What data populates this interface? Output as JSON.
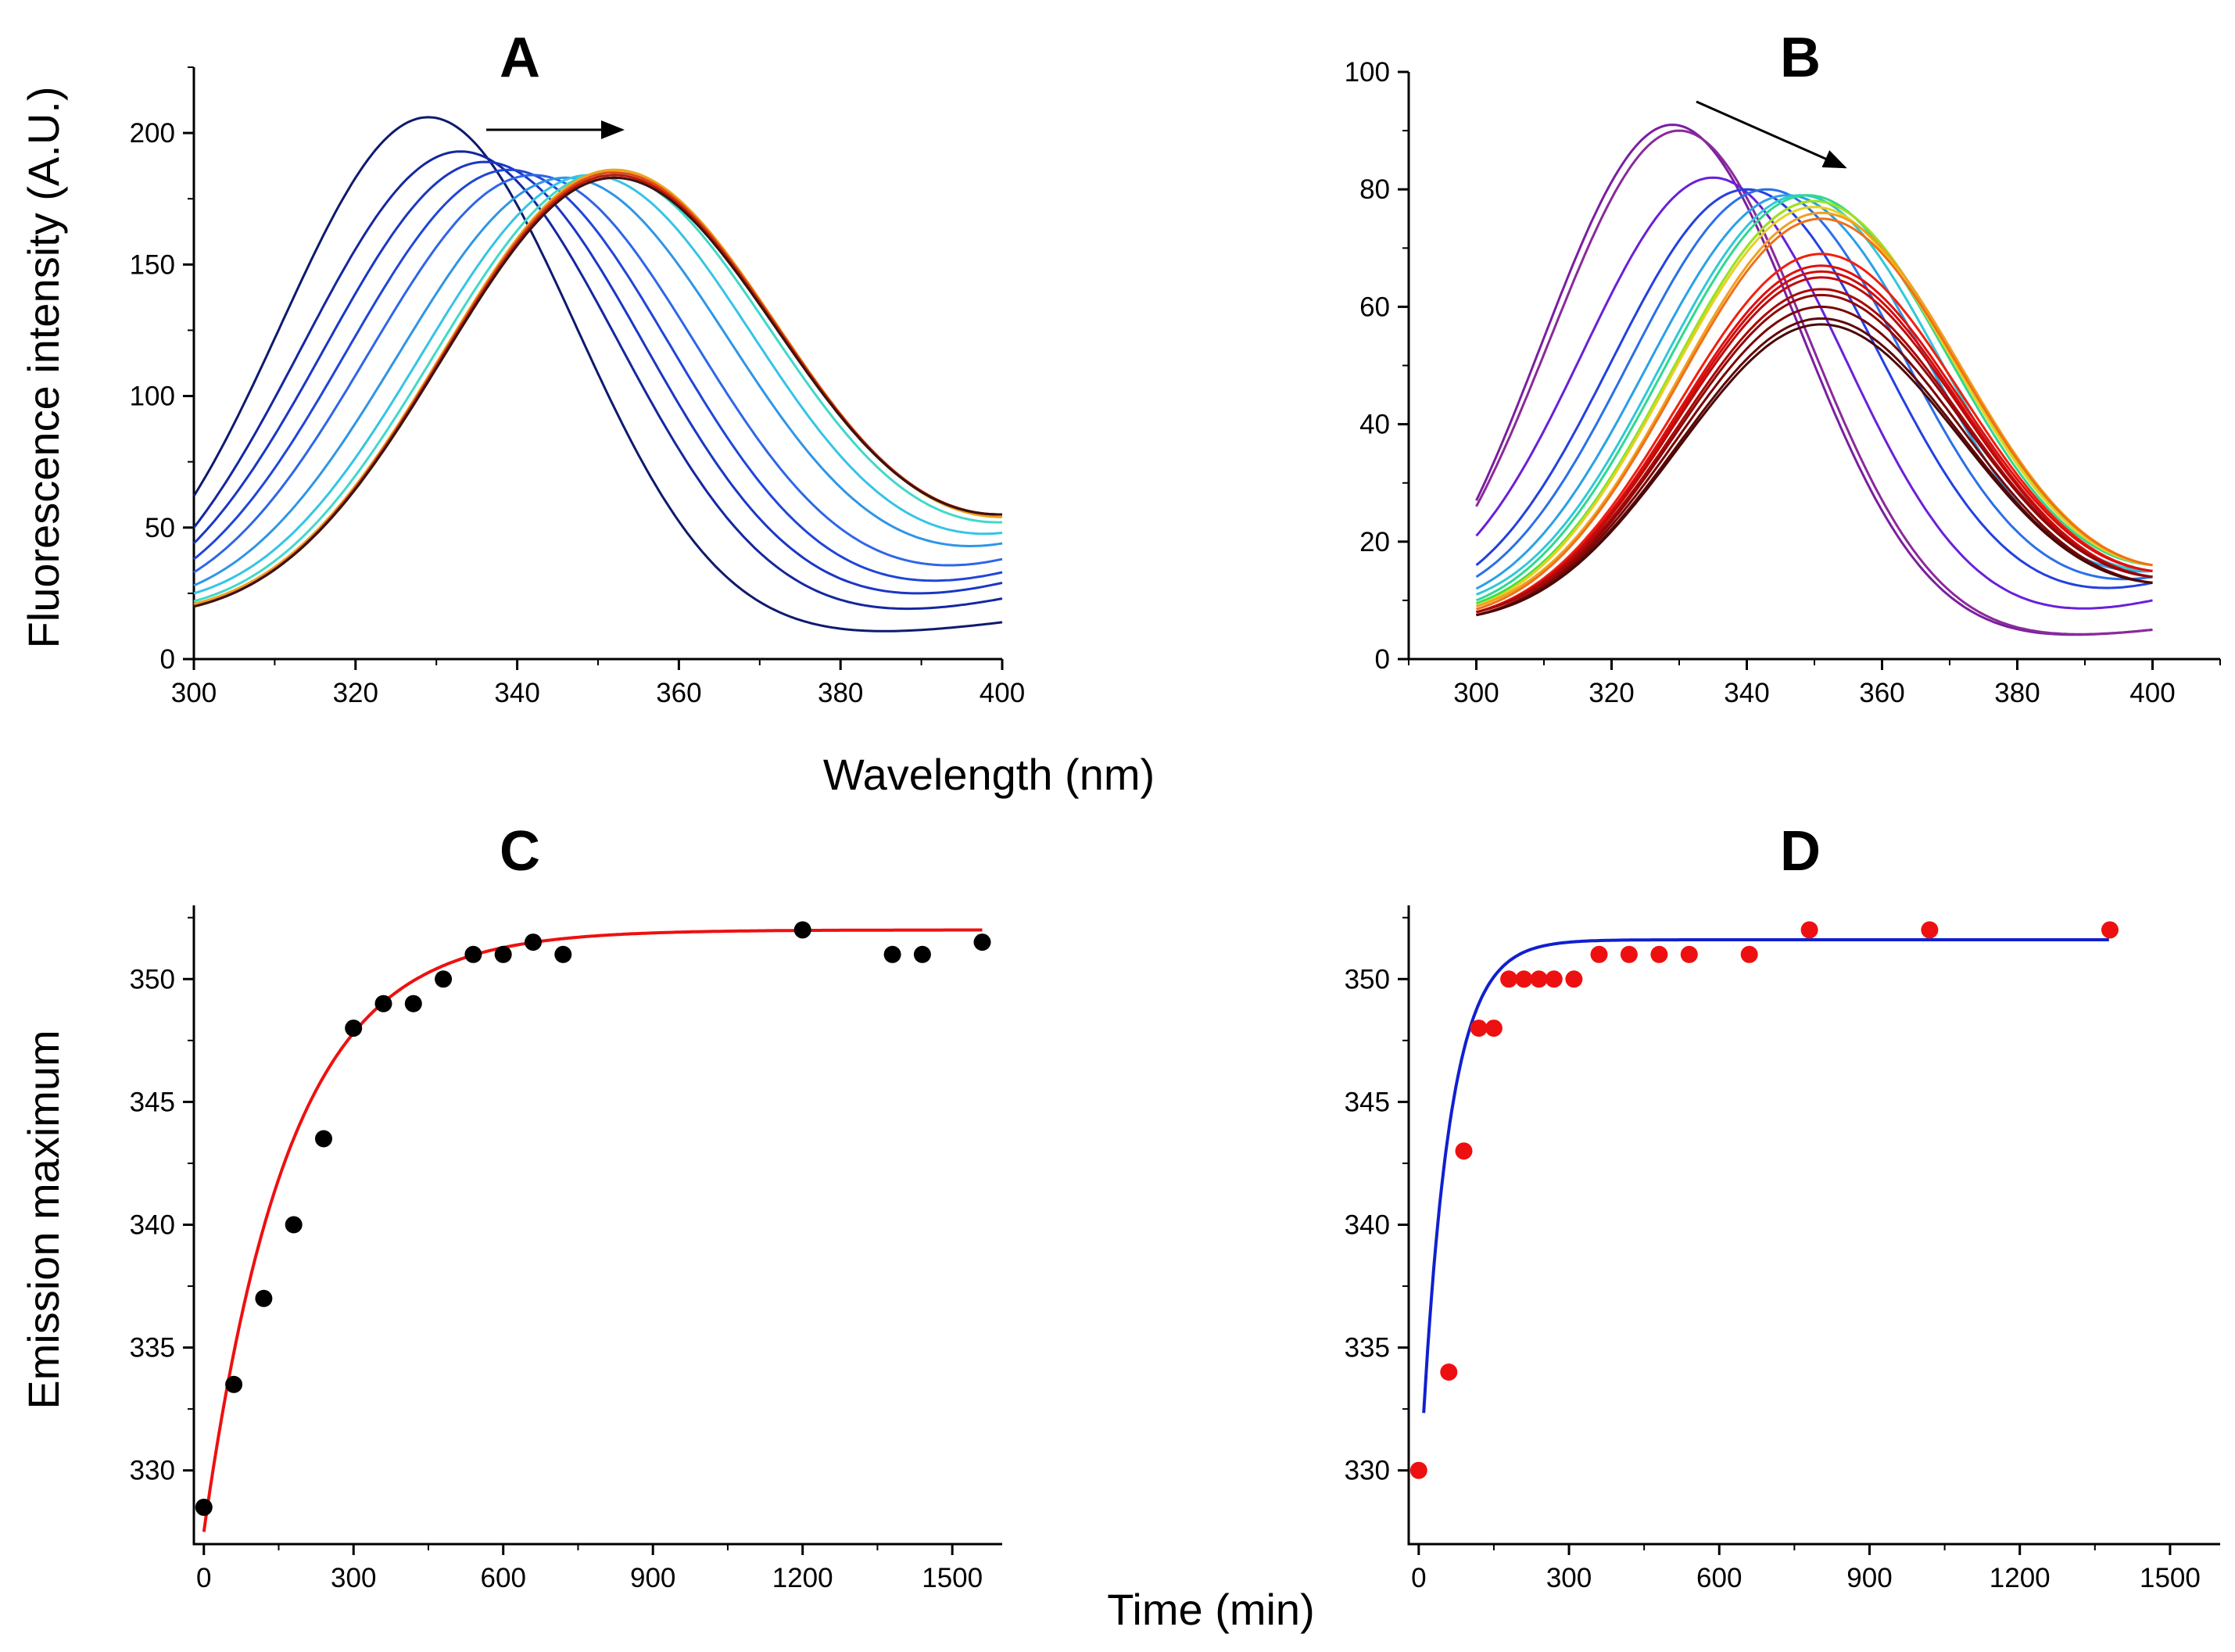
{
  "shared_labels": {
    "top_xlabel": "Wavelength (nm)",
    "top_ylabel": "Fluorescence intensity (A.U.)",
    "bottom_xlabel": "Time (min)",
    "bottom_ylabel": "Emission maximum"
  },
  "chart_data": [
    {
      "id": "A",
      "type": "line",
      "title": "A",
      "xlabel": "Wavelength (nm)",
      "ylabel": "Fluorescence intensity (A.U.)",
      "xlim": [
        300,
        400
      ],
      "ylim": [
        0,
        225
      ],
      "xticks": [
        300,
        320,
        340,
        360,
        380,
        400
      ],
      "yticks": [
        0,
        50,
        100,
        150,
        200
      ],
      "annotation": "arrow pointing right (red shift)",
      "series": [
        {
          "name": "A-1",
          "color": "#0d1a6e",
          "peak_x": 329,
          "peak_y": 206,
          "width": 26,
          "start_y": 62,
          "end_y": 14
        },
        {
          "name": "A-2",
          "color": "#1427a0",
          "peak_x": 333,
          "peak_y": 193,
          "width": 28,
          "start_y": 50,
          "end_y": 23
        },
        {
          "name": "A-3",
          "color": "#1a37c4",
          "peak_x": 336,
          "peak_y": 189,
          "width": 28.5,
          "start_y": 44,
          "end_y": 29
        },
        {
          "name": "A-4",
          "color": "#2046d8",
          "peak_x": 339,
          "peak_y": 186,
          "width": 29,
          "start_y": 38,
          "end_y": 33
        },
        {
          "name": "A-5",
          "color": "#2e66e8",
          "peak_x": 342,
          "peak_y": 184,
          "width": 29.5,
          "start_y": 33,
          "end_y": 38
        },
        {
          "name": "A-6",
          "color": "#2f95e6",
          "peak_x": 346,
          "peak_y": 183,
          "width": 30,
          "start_y": 28,
          "end_y": 44
        },
        {
          "name": "A-7",
          "color": "#35c4e6",
          "peak_x": 349,
          "peak_y": 184,
          "width": 30,
          "start_y": 25,
          "end_y": 48
        },
        {
          "name": "A-8",
          "color": "#40d9c9",
          "peak_x": 351,
          "peak_y": 185,
          "width": 30.5,
          "start_y": 22,
          "end_y": 52
        },
        {
          "name": "A-9",
          "color": "#a0d640",
          "peak_x": 352,
          "peak_y": 186,
          "width": 30.5,
          "start_y": 21,
          "end_y": 54
        },
        {
          "name": "A-10",
          "color": "#f0a020",
          "peak_x": 352,
          "peak_y": 186,
          "width": 30.5,
          "start_y": 21,
          "end_y": 54
        },
        {
          "name": "A-11",
          "color": "#e04a10",
          "peak_x": 352,
          "peak_y": 185,
          "width": 30.5,
          "start_y": 20,
          "end_y": 55
        },
        {
          "name": "A-12",
          "color": "#c0180a",
          "peak_x": 352,
          "peak_y": 184,
          "width": 30.5,
          "start_y": 20,
          "end_y": 55
        },
        {
          "name": "A-13",
          "color": "#8a0a0a",
          "peak_x": 352,
          "peak_y": 183,
          "width": 30.5,
          "start_y": 20,
          "end_y": 55
        },
        {
          "name": "A-14",
          "color": "#3a1410",
          "peak_x": 352,
          "peak_y": 183,
          "width": 30.5,
          "start_y": 20,
          "end_y": 55
        }
      ]
    },
    {
      "id": "B",
      "type": "line",
      "title": "B",
      "xlabel": "Wavelength (nm)",
      "ylabel": "",
      "xlim": [
        290,
        410
      ],
      "ylim": [
        0,
        100
      ],
      "xticks": [
        300,
        320,
        340,
        360,
        380,
        400
      ],
      "yticks": [
        0,
        20,
        40,
        60,
        80,
        100
      ],
      "annotation": "arrow pointing down-right",
      "series": [
        {
          "name": "B-1",
          "color": "#7a1fa0",
          "peak_x": 329,
          "peak_y": 91,
          "width": 27,
          "start_y": 27,
          "end_y": 5
        },
        {
          "name": "B-2",
          "color": "#8a2a9a",
          "peak_x": 330,
          "peak_y": 90,
          "width": 27,
          "start_y": 26,
          "end_y": 5
        },
        {
          "name": "B-3",
          "color": "#6a20d8",
          "peak_x": 335,
          "peak_y": 82,
          "width": 28,
          "start_y": 21,
          "end_y": 10
        },
        {
          "name": "B-4",
          "color": "#2440e0",
          "peak_x": 340,
          "peak_y": 80,
          "width": 29,
          "start_y": 16,
          "end_y": 13
        },
        {
          "name": "B-5",
          "color": "#2a70e8",
          "peak_x": 343,
          "peak_y": 80,
          "width": 29.5,
          "start_y": 14,
          "end_y": 14
        },
        {
          "name": "B-6",
          "color": "#2aa0e8",
          "peak_x": 346,
          "peak_y": 79,
          "width": 30,
          "start_y": 12,
          "end_y": 15
        },
        {
          "name": "B-7",
          "color": "#30c8d8",
          "peak_x": 348,
          "peak_y": 79,
          "width": 30,
          "start_y": 11,
          "end_y": 15
        },
        {
          "name": "B-8",
          "color": "#30d890",
          "peak_x": 349,
          "peak_y": 79,
          "width": 30.5,
          "start_y": 10,
          "end_y": 16
        },
        {
          "name": "B-9",
          "color": "#40e040",
          "peak_x": 350,
          "peak_y": 78,
          "width": 30.5,
          "start_y": 9.5,
          "end_y": 16
        },
        {
          "name": "B-10",
          "color": "#a0e020",
          "peak_x": 350,
          "peak_y": 78,
          "width": 30.5,
          "start_y": 9,
          "end_y": 16
        },
        {
          "name": "B-11",
          "color": "#e8d020",
          "peak_x": 350,
          "peak_y": 77,
          "width": 30.5,
          "start_y": 9,
          "end_y": 16
        },
        {
          "name": "B-12",
          "color": "#f0a020",
          "peak_x": 351,
          "peak_y": 76,
          "width": 30.5,
          "start_y": 9,
          "end_y": 16
        },
        {
          "name": "B-13",
          "color": "#f07018",
          "peak_x": 351,
          "peak_y": 75,
          "width": 30.5,
          "start_y": 8.5,
          "end_y": 16
        },
        {
          "name": "B-14",
          "color": "#f02010",
          "peak_x": 351,
          "peak_y": 69,
          "width": 30.5,
          "start_y": 8,
          "end_y": 15
        },
        {
          "name": "B-15",
          "color": "#e01010",
          "peak_x": 351,
          "peak_y": 67,
          "width": 30.5,
          "start_y": 8,
          "end_y": 15
        },
        {
          "name": "B-16",
          "color": "#d00c0c",
          "peak_x": 351,
          "peak_y": 66,
          "width": 30.5,
          "start_y": 8,
          "end_y": 14
        },
        {
          "name": "B-17",
          "color": "#c00a0a",
          "peak_x": 351,
          "peak_y": 65,
          "width": 30.5,
          "start_y": 8,
          "end_y": 14
        },
        {
          "name": "B-18",
          "color": "#a80808",
          "peak_x": 351,
          "peak_y": 63,
          "width": 30.5,
          "start_y": 8,
          "end_y": 14
        },
        {
          "name": "B-19",
          "color": "#900808",
          "peak_x": 351,
          "peak_y": 62,
          "width": 30.5,
          "start_y": 7.5,
          "end_y": 14
        },
        {
          "name": "B-20",
          "color": "#780808",
          "peak_x": 351,
          "peak_y": 60,
          "width": 30.5,
          "start_y": 7.5,
          "end_y": 13
        },
        {
          "name": "B-21",
          "color": "#600808",
          "peak_x": 351,
          "peak_y": 58,
          "width": 30.5,
          "start_y": 7.5,
          "end_y": 13
        },
        {
          "name": "B-22",
          "color": "#4a0808",
          "peak_x": 351,
          "peak_y": 57,
          "width": 30.5,
          "start_y": 7.5,
          "end_y": 13
        }
      ]
    },
    {
      "id": "C",
      "type": "scatter",
      "title": "C",
      "xlabel": "Time (min)",
      "ylabel": "Emission maximum",
      "xlim": [
        -20,
        1600
      ],
      "ylim": [
        327,
        353
      ],
      "xticks": [
        0,
        300,
        600,
        900,
        1200,
        1500
      ],
      "yticks": [
        330,
        335,
        340,
        345,
        350
      ],
      "point_color": "#000000",
      "points": [
        [
          0,
          328.5
        ],
        [
          60,
          333.5
        ],
        [
          120,
          337
        ],
        [
          180,
          340
        ],
        [
          240,
          343.5
        ],
        [
          300,
          348
        ],
        [
          360,
          349
        ],
        [
          420,
          349
        ],
        [
          480,
          350
        ],
        [
          540,
          351
        ],
        [
          600,
          351
        ],
        [
          660,
          351.5
        ],
        [
          720,
          351
        ],
        [
          1200,
          352
        ],
        [
          1380,
          351
        ],
        [
          1440,
          351
        ],
        [
          1560,
          351.5
        ]
      ],
      "fit": {
        "color": "#ee1010",
        "model": "y = y0 - A*exp(-x/t)",
        "y0": 352.0,
        "A": 24.5,
        "t": 170,
        "x_range": [
          0,
          1560
        ]
      }
    },
    {
      "id": "D",
      "type": "scatter",
      "title": "D",
      "xlabel": "Time (min)",
      "ylabel": "",
      "xlim": [
        -20,
        1600
      ],
      "ylim": [
        327,
        353
      ],
      "xticks": [
        0,
        300,
        600,
        900,
        1200,
        1500
      ],
      "yticks": [
        330,
        335,
        340,
        345,
        350
      ],
      "point_color": "#ee1010",
      "points": [
        [
          0,
          330
        ],
        [
          60,
          334
        ],
        [
          90,
          343
        ],
        [
          120,
          348
        ],
        [
          150,
          348
        ],
        [
          180,
          350
        ],
        [
          210,
          350
        ],
        [
          240,
          350
        ],
        [
          270,
          350
        ],
        [
          310,
          350
        ],
        [
          360,
          351
        ],
        [
          420,
          351
        ],
        [
          480,
          351
        ],
        [
          540,
          351
        ],
        [
          660,
          351
        ],
        [
          780,
          352
        ],
        [
          1020,
          352
        ],
        [
          1380,
          352
        ]
      ],
      "fit": {
        "color": "#1020d0",
        "model": "y = y0 - A*exp(-x/t)",
        "y0": 351.6,
        "A": 23.1,
        "t": 55,
        "x_range": [
          10,
          1380
        ]
      }
    }
  ]
}
